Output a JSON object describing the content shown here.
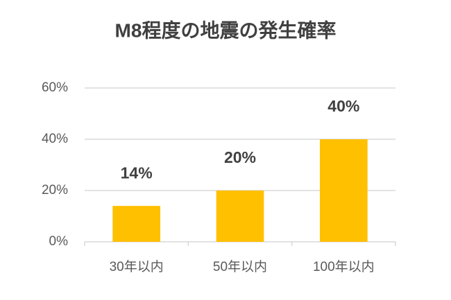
{
  "chart_data": {
    "type": "bar",
    "title": "M8程度の地震の発生確率",
    "categories": [
      "30年以内",
      "50年以内",
      "100年以内"
    ],
    "values": [
      14,
      20,
      40
    ],
    "value_labels": [
      "14%",
      "20%",
      "40%"
    ],
    "color": "#ffc000",
    "ylim": [
      0,
      60
    ],
    "yticks": [
      {
        "value": 0,
        "label": "0%"
      },
      {
        "value": 20,
        "label": "20%"
      },
      {
        "value": 40,
        "label": "40%"
      },
      {
        "value": 60,
        "label": "60%"
      }
    ],
    "grid": true
  }
}
